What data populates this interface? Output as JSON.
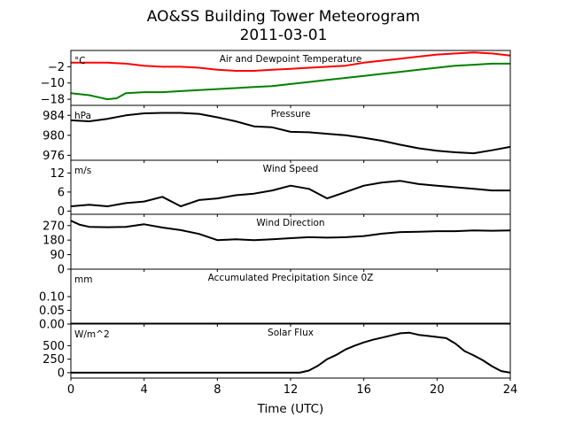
{
  "figure": {
    "title_line1": "AO&SS Building Tower Meteorogram",
    "title_line2": "2011-03-01",
    "xlabel": "Time (UTC)",
    "x_ticks": [
      "0",
      "4",
      "8",
      "12",
      "16",
      "20",
      "24"
    ]
  },
  "chart_data": [
    {
      "type": "line",
      "title": "Air and Dewpoint Temperature",
      "unit": "°C",
      "xlim": [
        0,
        24
      ],
      "ylim": [
        -21,
        6
      ],
      "y_ticks": [
        -18,
        -10,
        -2
      ],
      "y_tick_labels": [
        "−18",
        "−10",
        "−2"
      ],
      "series": [
        {
          "color": "#ff0000",
          "x": [
            0,
            1,
            2,
            3,
            4,
            5,
            6,
            7,
            8,
            9,
            10,
            11,
            12,
            13,
            14,
            15,
            16,
            17,
            18,
            19,
            20,
            21,
            22,
            23,
            24
          ],
          "values": [
            0,
            0,
            0,
            -0.5,
            -1.5,
            -2,
            -2,
            -2.5,
            -3.5,
            -4,
            -4,
            -3.5,
            -3,
            -2.5,
            -2,
            -1.5,
            0,
            1,
            2,
            3,
            4,
            4.5,
            5,
            4.5,
            3.5
          ]
        },
        {
          "color": "#008000",
          "x": [
            0,
            1,
            1.5,
            2,
            2.5,
            3,
            4,
            5,
            6,
            7,
            8,
            9,
            10,
            11,
            12,
            13,
            14,
            15,
            16,
            17,
            18,
            19,
            20,
            21,
            22,
            23,
            24
          ],
          "values": [
            -15,
            -16,
            -17,
            -18,
            -17.5,
            -15,
            -14.5,
            -14.5,
            -14,
            -13.5,
            -13,
            -12.5,
            -12,
            -11.5,
            -10.5,
            -9.5,
            -8.5,
            -7.5,
            -6.5,
            -5.5,
            -4.5,
            -3.5,
            -2.5,
            -1.5,
            -1,
            -0.5,
            -0.5
          ]
        }
      ]
    },
    {
      "type": "line",
      "title": "Pressure",
      "unit": "hPa",
      "xlim": [
        0,
        24
      ],
      "ylim": [
        975,
        986
      ],
      "y_ticks": [
        976,
        980,
        984
      ],
      "y_tick_labels": [
        "976",
        "980",
        "984"
      ],
      "series": [
        {
          "color": "#000000",
          "x": [
            0,
            1,
            2,
            3,
            4,
            5,
            6,
            7,
            8,
            9,
            10,
            11,
            12,
            13,
            14,
            15,
            16,
            17,
            18,
            19,
            20,
            21,
            22,
            23,
            24
          ],
          "values": [
            983,
            982.8,
            983.3,
            984,
            984.4,
            984.5,
            984.5,
            984.3,
            983.6,
            982.8,
            981.8,
            981.6,
            980.7,
            980.6,
            980.3,
            980,
            979.5,
            978.9,
            978.1,
            977.4,
            976.9,
            976.6,
            976.4,
            977,
            977.7
          ]
        }
      ]
    },
    {
      "type": "line",
      "title": "Wind Speed",
      "unit": "m/s",
      "xlim": [
        0,
        24
      ],
      "ylim": [
        -1,
        16
      ],
      "y_ticks": [
        0,
        6,
        12
      ],
      "y_tick_labels": [
        "0",
        "6",
        "12"
      ],
      "series": [
        {
          "color": "#000000",
          "x": [
            0,
            1,
            2,
            3,
            4,
            5,
            6,
            7,
            8,
            9,
            10,
            11,
            12,
            13,
            14,
            15,
            16,
            17,
            18,
            19,
            20,
            21,
            22,
            23,
            24
          ],
          "values": [
            1.5,
            2,
            1.5,
            2.5,
            3,
            4.5,
            1.5,
            3.5,
            4,
            5,
            5.5,
            6.5,
            8,
            7,
            4,
            6,
            8,
            9,
            9.5,
            8.5,
            8,
            7.5,
            7,
            6.5,
            6.5
          ]
        }
      ]
    },
    {
      "type": "line",
      "title": "Wind Direction",
      "unit": "",
      "xlim": [
        0,
        24
      ],
      "ylim": [
        0,
        340
      ],
      "y_ticks": [
        0,
        90,
        180,
        270
      ],
      "y_tick_labels": [
        "0",
        "90",
        "180",
        "270"
      ],
      "series": [
        {
          "color": "#000000",
          "x": [
            0,
            0.5,
            1,
            2,
            3,
            4,
            5,
            6,
            7,
            8,
            9,
            10,
            11,
            12,
            13,
            14,
            15,
            16,
            17,
            18,
            19,
            20,
            21,
            22,
            23,
            24
          ],
          "values": [
            300,
            275,
            262,
            260,
            262,
            278,
            258,
            242,
            218,
            180,
            185,
            180,
            185,
            192,
            198,
            195,
            198,
            205,
            220,
            230,
            232,
            235,
            235,
            240,
            238,
            240
          ]
        }
      ]
    },
    {
      "type": "line",
      "title": "Accumulated Precipitation Since 0Z",
      "unit": "mm",
      "xlim": [
        0,
        24
      ],
      "ylim": [
        0,
        0.2
      ],
      "y_ticks": [
        0,
        0.05,
        0.1
      ],
      "y_tick_labels": [
        "0.00",
        "0.05",
        "0.10"
      ],
      "series": [
        {
          "color": "#000000",
          "x": [
            0,
            24
          ],
          "values": [
            0,
            0
          ]
        }
      ]
    },
    {
      "type": "line",
      "title": "Solar Flux",
      "unit": "W/m^2",
      "xlim": [
        0,
        24
      ],
      "ylim": [
        -100,
        900
      ],
      "y_ticks": [
        0,
        250,
        500
      ],
      "y_tick_labels": [
        "0",
        "250",
        "500"
      ],
      "series": [
        {
          "color": "#000000",
          "x": [
            0,
            12.5,
            13,
            13.5,
            14,
            14.5,
            15,
            15.5,
            16,
            16.5,
            17,
            17.5,
            18,
            18.5,
            19,
            19.5,
            20,
            20.5,
            21,
            21.5,
            22,
            22.5,
            23,
            23.5,
            24
          ],
          "values": [
            0,
            0,
            40,
            130,
            250,
            330,
            430,
            500,
            560,
            610,
            650,
            690,
            730,
            740,
            700,
            680,
            660,
            640,
            540,
            400,
            320,
            230,
            120,
            30,
            0
          ]
        }
      ]
    }
  ]
}
